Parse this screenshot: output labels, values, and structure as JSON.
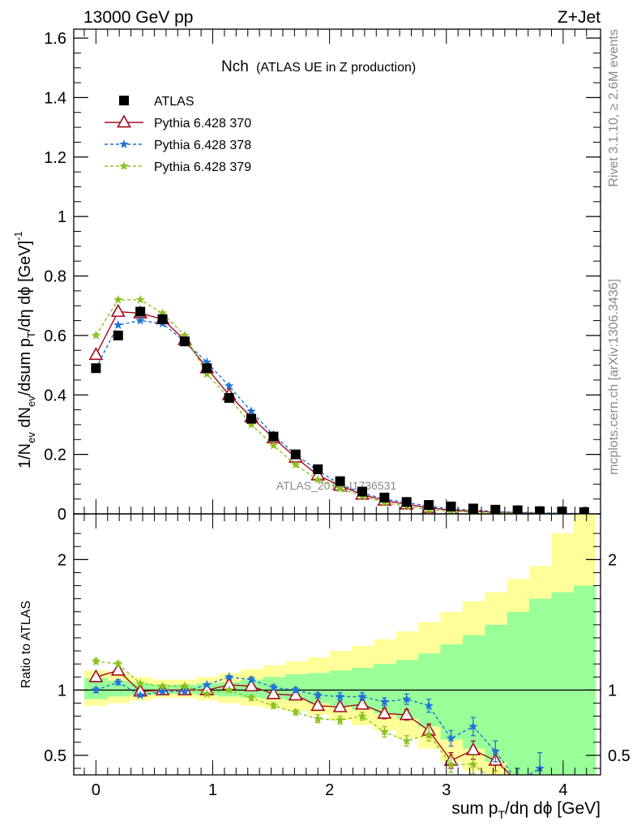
{
  "header": {
    "left": "13000 GeV pp",
    "right": "Z+Jet"
  },
  "side_labels": {
    "rivet": "Rivet 3.1.10, ≥ 2.6M events",
    "mcplots": "mcplots.cern.ch [arXiv:1306.3436]"
  },
  "watermark": "ATLAS_2019_I1736531",
  "colors": {
    "atlas": "#000000",
    "p370": "#a50a1e",
    "p378": "#1f73d6",
    "p379": "#8cc21e",
    "band_inner": "#99ff99",
    "band_outer": "#ffff99"
  },
  "chart_data": [
    {
      "type": "line",
      "title": "Nch",
      "subtitle": "(ATLAS UE in Z production)",
      "ylabel": "1/N_ev dN_ev/dsum p_T/dη dφ [GeV]^-1",
      "xlabel": "sum p_T/dη dφ [GeV]",
      "xlim": [
        -0.19,
        4.32
      ],
      "ylim": [
        0,
        1.63
      ],
      "yticks": [
        "0",
        "0.2",
        "0.4",
        "0.6",
        "0.8",
        "1",
        "1.2",
        "1.4",
        "1.6"
      ],
      "legend": "top-left",
      "x": [
        0,
        0.19,
        0.38,
        0.57,
        0.76,
        0.95,
        1.14,
        1.33,
        1.52,
        1.71,
        1.9,
        2.09,
        2.28,
        2.47,
        2.66,
        2.85,
        3.04,
        3.23,
        3.42,
        3.61,
        3.8,
        3.99,
        4.18
      ],
      "series": [
        {
          "name": "ATLAS",
          "marker": "square",
          "values": [
            0.49,
            0.6,
            0.68,
            0.655,
            0.58,
            0.49,
            0.39,
            0.32,
            0.26,
            0.2,
            0.15,
            0.11,
            0.075,
            0.055,
            0.04,
            0.03,
            0.025,
            0.018,
            0.014,
            0.012,
            0.009,
            0.008,
            0.006
          ]
        },
        {
          "name": "Pythia 6.428 370",
          "marker": "open-triangle",
          "values": [
            0.535,
            0.68,
            0.675,
            0.655,
            0.585,
            0.49,
            0.4,
            0.325,
            0.255,
            0.19,
            0.13,
            0.095,
            0.065,
            0.045,
            0.032,
            0.021,
            0.012,
            0.009,
            0.006,
            0.004,
            0.002,
            0.001,
            0.0005
          ]
        },
        {
          "name": "Pythia 6.428 378",
          "marker": "star",
          "values": [
            0.49,
            0.635,
            0.65,
            0.64,
            0.58,
            0.51,
            0.43,
            0.345,
            0.265,
            0.2,
            0.145,
            0.1,
            0.07,
            0.05,
            0.038,
            0.026,
            0.016,
            0.013,
            0.008,
            0.005,
            0.004,
            0.002,
            0.001
          ]
        },
        {
          "name": "Pythia 6.428 379",
          "marker": "star",
          "values": [
            0.6,
            0.72,
            0.72,
            0.675,
            0.6,
            0.47,
            0.39,
            0.3,
            0.23,
            0.165,
            0.115,
            0.085,
            0.06,
            0.038,
            0.026,
            0.014,
            0.009,
            0.006,
            0.004,
            0.002,
            0.001,
            0.0005,
            0.0002
          ]
        }
      ]
    },
    {
      "type": "line",
      "ylabel": "Ratio to ATLAS",
      "xlabel": "sum p_T/dη dφ [GeV]",
      "xlim": [
        -0.19,
        4.32
      ],
      "ylim": [
        0.35,
        2.35
      ],
      "yticks": [
        "0.5",
        "1",
        "2"
      ],
      "xticks": [
        "0",
        "1",
        "2",
        "3",
        "4"
      ],
      "reference_line": 1,
      "bin_edges": [
        -0.1,
        0.1,
        0.29,
        0.48,
        0.67,
        0.86,
        1.05,
        1.24,
        1.43,
        1.62,
        1.81,
        2.0,
        2.19,
        2.38,
        2.57,
        2.76,
        2.95,
        3.14,
        3.33,
        3.52,
        3.71,
        3.9,
        4.09,
        4.28
      ],
      "band_inner": [
        [
          0.93,
          1.09
        ],
        [
          0.95,
          1.07
        ],
        [
          0.96,
          1.05
        ],
        [
          0.97,
          1.04
        ],
        [
          0.97,
          1.04
        ],
        [
          0.96,
          1.05
        ],
        [
          0.95,
          1.06
        ],
        [
          0.94,
          1.08
        ],
        [
          0.93,
          1.1
        ],
        [
          0.92,
          1.12
        ],
        [
          0.9,
          1.13
        ],
        [
          0.88,
          1.15
        ],
        [
          0.85,
          1.17
        ],
        [
          0.82,
          1.2
        ],
        [
          0.78,
          1.23
        ],
        [
          0.72,
          1.28
        ],
        [
          0.62,
          1.35
        ],
        [
          0.55,
          1.42
        ],
        [
          0.45,
          1.5
        ],
        [
          0.35,
          1.6
        ],
        [
          0.35,
          1.7
        ],
        [
          0.35,
          1.75
        ],
        [
          0.35,
          1.8
        ]
      ],
      "band_outer": [
        [
          0.88,
          1.15
        ],
        [
          0.9,
          1.13
        ],
        [
          0.92,
          1.1
        ],
        [
          0.94,
          1.08
        ],
        [
          0.94,
          1.08
        ],
        [
          0.92,
          1.1
        ],
        [
          0.9,
          1.13
        ],
        [
          0.88,
          1.16
        ],
        [
          0.86,
          1.19
        ],
        [
          0.84,
          1.22
        ],
        [
          0.81,
          1.25
        ],
        [
          0.77,
          1.3
        ],
        [
          0.73,
          1.34
        ],
        [
          0.69,
          1.39
        ],
        [
          0.63,
          1.45
        ],
        [
          0.55,
          1.52
        ],
        [
          0.45,
          1.6
        ],
        [
          0.38,
          1.68
        ],
        [
          0.35,
          1.75
        ],
        [
          0.35,
          1.85
        ],
        [
          0.35,
          1.95
        ],
        [
          0.35,
          2.2
        ],
        [
          0.35,
          2.35
        ]
      ],
      "x": [
        0,
        0.19,
        0.38,
        0.57,
        0.76,
        0.95,
        1.14,
        1.33,
        1.52,
        1.71,
        1.9,
        2.09,
        2.28,
        2.47,
        2.66,
        2.85,
        3.04,
        3.23,
        3.42,
        3.61,
        3.8
      ],
      "series": [
        {
          "name": "Pythia 6.428 370",
          "marker": "open-triangle",
          "values": [
            1.1,
            1.15,
            0.99,
            1.0,
            1.0,
            1.0,
            1.04,
            1.03,
            0.97,
            0.96,
            0.88,
            0.87,
            0.89,
            0.82,
            0.81,
            0.69,
            0.46,
            0.54,
            0.46,
            0.3,
            null
          ],
          "errors": [
            0.02,
            0.02,
            0.01,
            0.01,
            0.01,
            0.01,
            0.01,
            0.02,
            0.02,
            0.02,
            0.03,
            0.03,
            0.03,
            0.04,
            0.04,
            0.05,
            0.06,
            0.07,
            0.08,
            0.1,
            null
          ]
        },
        {
          "name": "Pythia 6.428 378",
          "marker": "star",
          "values": [
            1.0,
            1.06,
            0.96,
            0.99,
            0.99,
            1.04,
            1.1,
            1.08,
            1.02,
            1.0,
            0.96,
            0.95,
            0.95,
            0.91,
            0.93,
            0.88,
            0.63,
            0.72,
            0.53,
            0.3,
            0.4
          ],
          "errors": [
            0.02,
            0.02,
            0.01,
            0.01,
            0.01,
            0.01,
            0.01,
            0.02,
            0.02,
            0.02,
            0.02,
            0.03,
            0.03,
            0.03,
            0.04,
            0.05,
            0.06,
            0.07,
            0.08,
            0.1,
            0.12
          ]
        },
        {
          "name": "Pythia 6.428 379",
          "marker": "star",
          "values": [
            1.22,
            1.2,
            1.05,
            1.03,
            1.03,
            0.97,
            1.0,
            0.94,
            0.88,
            0.83,
            0.78,
            0.77,
            0.8,
            0.68,
            0.61,
            0.66,
            0.43,
            0.43,
            0.3,
            null,
            null
          ],
          "errors": [
            0.02,
            0.02,
            0.01,
            0.01,
            0.01,
            0.01,
            0.01,
            0.02,
            0.02,
            0.02,
            0.03,
            0.03,
            0.03,
            0.04,
            0.04,
            0.05,
            0.06,
            0.07,
            0.08,
            null,
            null
          ]
        }
      ]
    }
  ]
}
